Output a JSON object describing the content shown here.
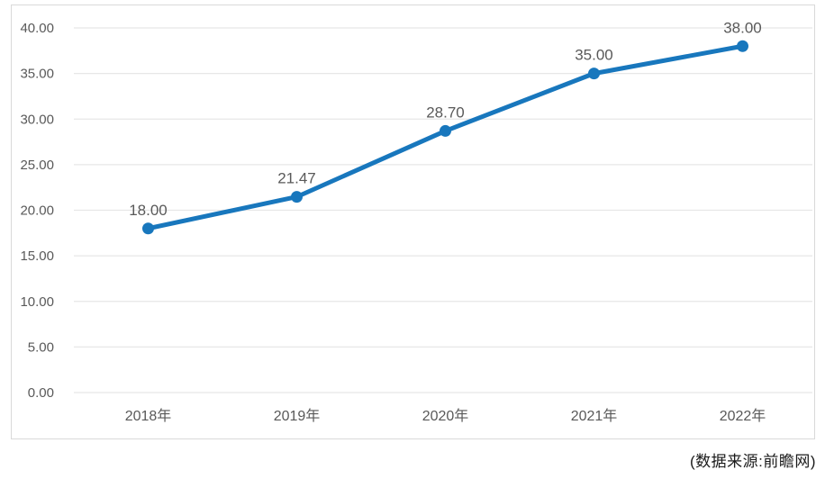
{
  "chart_data": {
    "type": "line",
    "title": "",
    "categories": [
      "2018年",
      "2019年",
      "2020年",
      "2021年",
      "2022年"
    ],
    "series": [
      {
        "name": "value",
        "values": [
          18.0,
          21.47,
          28.7,
          35.0,
          38.0
        ]
      }
    ],
    "point_labels": [
      "18.00",
      "21.47",
      "28.70",
      "35.00",
      "38.00"
    ],
    "y_ticks": [
      0,
      5,
      10,
      15,
      20,
      25,
      30,
      35,
      40
    ],
    "y_tick_labels": [
      "0.00",
      "5.00",
      "10.00",
      "15.00",
      "20.00",
      "25.00",
      "30.00",
      "35.00",
      "40.00"
    ],
    "ylim": [
      0,
      40
    ],
    "xlabel": "",
    "ylabel": "",
    "grid": "horizontal",
    "legend": "none",
    "colors": {
      "line": "#1877BD",
      "marker": "#1877BD",
      "gridline": "#e7e7e7",
      "frame_border": "#d9d9d9",
      "axis_tick_text": "#595959",
      "data_label_text": "#595959"
    }
  },
  "source_note": "(数据来源:前瞻网)"
}
